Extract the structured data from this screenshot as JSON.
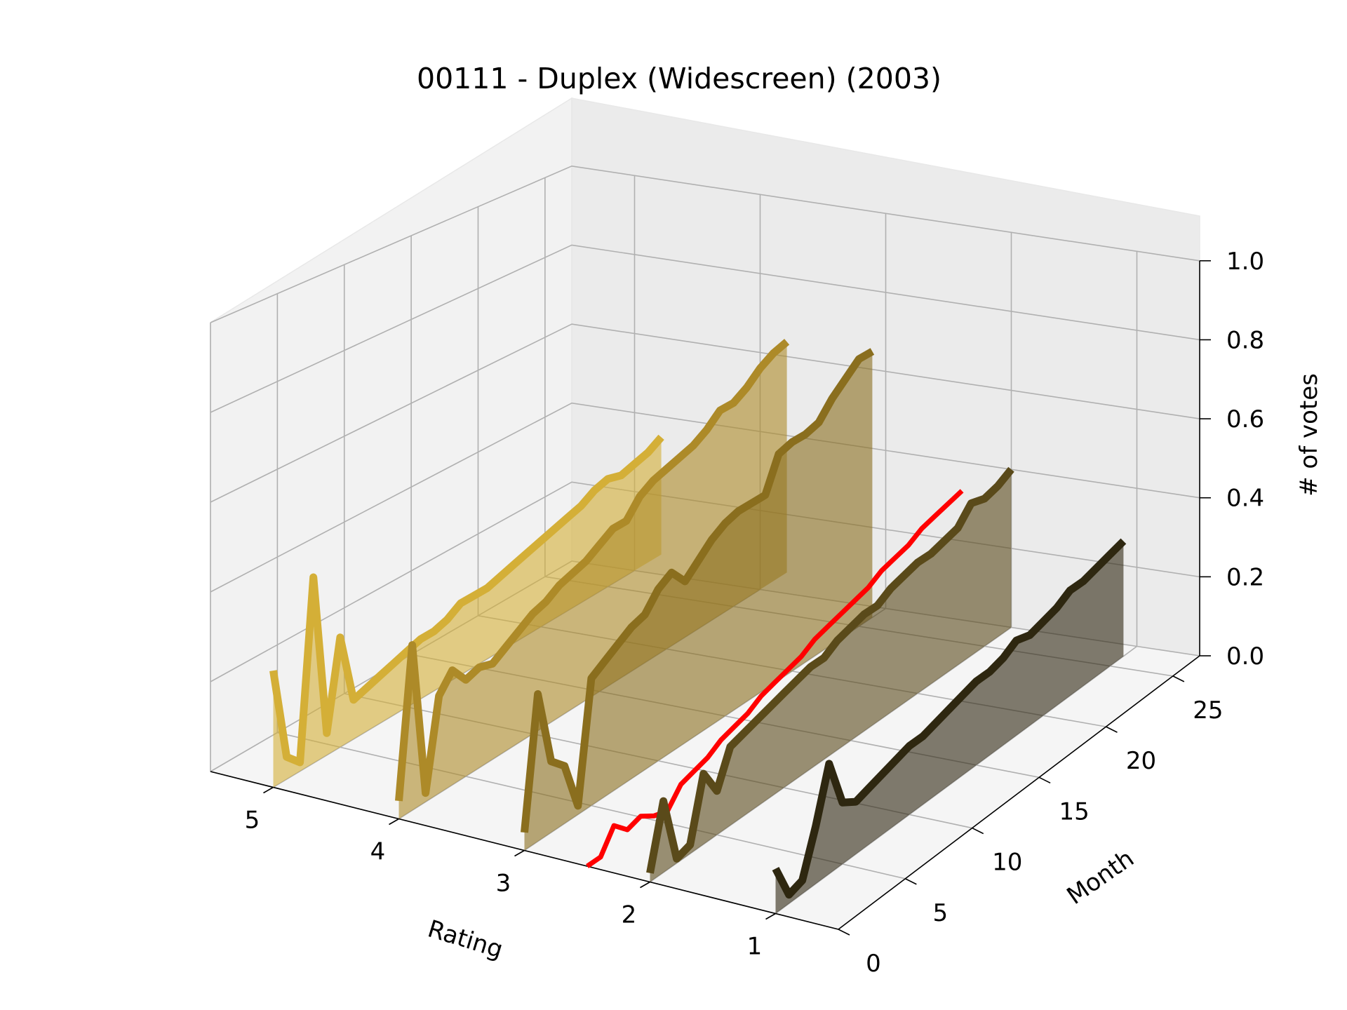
{
  "chart_data": {
    "type": "line",
    "title": "00111 - Duplex (Widescreen) (2003)",
    "xlabel": "Rating",
    "ylabel": "Month",
    "zlabel": "# of votes",
    "x_ticks": [
      "5",
      "4",
      "3",
      "2",
      "1"
    ],
    "y_ticks": [
      "0",
      "5",
      "10",
      "15",
      "20",
      "25"
    ],
    "z_ticks": [
      "0.0",
      "0.2",
      "0.4",
      "0.6",
      "0.8",
      "1.0"
    ],
    "xlim": [
      0.5,
      5.5
    ],
    "ylim": [
      0,
      27
    ],
    "zlim": [
      0,
      1
    ],
    "grid": true,
    "series": [
      {
        "rating": 5,
        "color": "#d4af37",
        "filled": true,
        "opacity": 0.6,
        "width": 11,
        "values": [
          0.26,
          0.05,
          0.02,
          0.42,
          0.05,
          0.25,
          0.09,
          0.1,
          0.11,
          0.12,
          0.13,
          0.14,
          0.14,
          0.15,
          0.17,
          0.17,
          0.17,
          0.18,
          0.19,
          0.2,
          0.21,
          0.22,
          0.23,
          0.24,
          0.26,
          0.27,
          0.26,
          0.27,
          0.28,
          0.3
        ]
      },
      {
        "rating": 4,
        "color": "#ad8a28",
        "filled": true,
        "opacity": 0.6,
        "width": 11,
        "values": [
          0.04,
          0.37,
          0.02,
          0.22,
          0.26,
          0.22,
          0.23,
          0.22,
          0.24,
          0.26,
          0.28,
          0.29,
          0.31,
          0.32,
          0.33,
          0.35,
          0.37,
          0.37,
          0.41,
          0.43,
          0.44,
          0.45,
          0.46,
          0.48,
          0.51,
          0.51,
          0.53,
          0.56,
          0.58,
          0.59
        ]
      },
      {
        "rating": 3,
        "color": "#8a6e1e",
        "filled": true,
        "opacity": 0.6,
        "width": 11,
        "values": [
          0.04,
          0.33,
          0.16,
          0.13,
          0.02,
          0.29,
          0.31,
          0.33,
          0.35,
          0.36,
          0.4,
          0.42,
          0.38,
          0.41,
          0.44,
          0.46,
          0.47,
          0.47,
          0.47,
          0.55,
          0.56,
          0.56,
          0.57,
          0.61,
          0.64,
          0.67,
          0.67
        ]
      },
      {
        "rating": 2.5,
        "color": "#ff0000",
        "filled": false,
        "width": 7,
        "values": [
          0.0,
          0.0,
          0.05,
          0.02,
          0.03,
          0.01,
          0.0,
          0.04,
          0.05,
          0.06,
          0.08,
          0.09,
          0.1,
          0.12,
          0.13,
          0.14,
          0.15,
          0.17,
          0.18,
          0.19,
          0.2,
          0.21,
          0.23,
          0.24,
          0.25,
          0.27,
          0.28,
          0.29,
          0.3
        ]
      },
      {
        "rating": 2,
        "color": "#5a4a1a",
        "filled": true,
        "opacity": 0.6,
        "width": 11,
        "values": [
          0.02,
          0.16,
          0.01,
          0.02,
          0.16,
          0.1,
          0.18,
          0.19,
          0.2,
          0.21,
          0.22,
          0.23,
          0.24,
          0.24,
          0.26,
          0.27,
          0.28,
          0.28,
          0.3,
          0.31,
          0.32,
          0.32,
          0.33,
          0.34,
          0.38,
          0.37,
          0.38,
          0.4
        ]
      },
      {
        "rating": 1,
        "color": "#2e2710",
        "filled": true,
        "opacity": 0.6,
        "width": 11,
        "values": [
          0.1,
          0.02,
          0.03,
          0.13,
          0.25,
          0.14,
          0.12,
          0.13,
          0.14,
          0.15,
          0.16,
          0.16,
          0.17,
          0.18,
          0.19,
          0.2,
          0.2,
          0.21,
          0.23,
          0.22,
          0.23,
          0.24,
          0.26,
          0.26,
          0.27,
          0.28,
          0.29
        ]
      }
    ]
  }
}
